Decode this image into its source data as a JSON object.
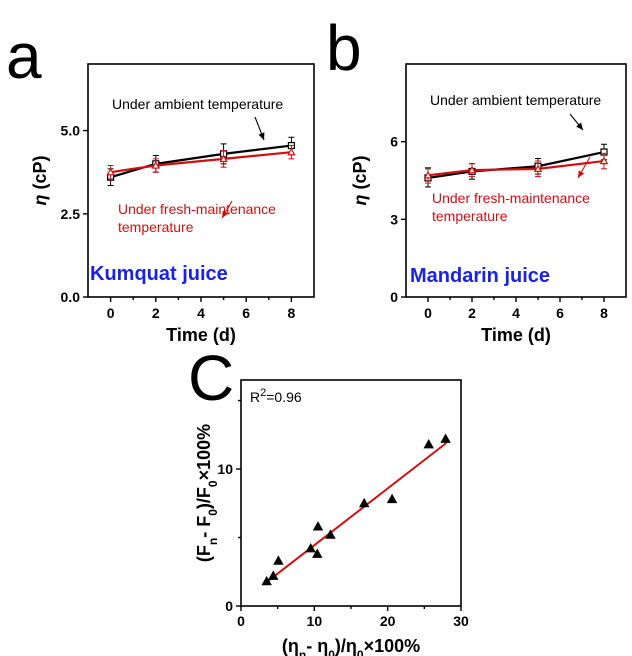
{
  "colors": {
    "ambient": "#000000",
    "fresh": "#d01010",
    "juice_label": "#1a22e6",
    "fit": "#d01010"
  },
  "chart_data": [
    {
      "panel": "a",
      "type": "line",
      "xlabel": "Time (d)",
      "ylabel_symbol": "η",
      "ylabel_unit": "(cP)",
      "xlim": [
        -1,
        9
      ],
      "ylim": [
        0,
        7
      ],
      "xticks": [
        0,
        2,
        4,
        6,
        8
      ],
      "yticks": [
        {
          "v": 0,
          "label": "0.0"
        },
        {
          "v": 2.5,
          "label": "2.5"
        },
        {
          "v": 5,
          "label": "5.0"
        }
      ],
      "juice_label": "Kumquat juice",
      "annotations": {
        "ambient": "Under ambient temperature",
        "fresh_line1": "Under fresh-maintenance",
        "fresh_line2": "temperature"
      },
      "series": [
        {
          "name": "Under ambient temperature",
          "marker": "square",
          "x": [
            0,
            2,
            5,
            8
          ],
          "y": [
            3.6,
            4.0,
            4.3,
            4.55
          ],
          "err": [
            0.25,
            0.25,
            0.3,
            0.25
          ]
        },
        {
          "name": "Under fresh-maintenance temperature",
          "marker": "triangle",
          "x": [
            0,
            2,
            5,
            8
          ],
          "y": [
            3.75,
            3.95,
            4.15,
            4.35
          ],
          "err": [
            0.2,
            0.2,
            0.25,
            0.2
          ]
        }
      ]
    },
    {
      "panel": "b",
      "type": "line",
      "xlabel": "Time (d)",
      "ylabel_symbol": "η",
      "ylabel_unit": "(cP)",
      "xlim": [
        -1,
        9
      ],
      "ylim": [
        0,
        9
      ],
      "xticks": [
        0,
        2,
        4,
        6,
        8
      ],
      "yticks": [
        {
          "v": 0,
          "label": "0"
        },
        {
          "v": 3,
          "label": "3"
        },
        {
          "v": 6,
          "label": "6"
        }
      ],
      "juice_label": "Mandarin juice",
      "annotations": {
        "ambient": "Under ambient temperature",
        "fresh_line1": "Under fresh-maintenance",
        "fresh_line2": "temperature"
      },
      "series": [
        {
          "name": "Under ambient temperature",
          "marker": "square",
          "x": [
            0,
            2,
            5,
            8
          ],
          "y": [
            4.6,
            4.85,
            5.05,
            5.6
          ],
          "err": [
            0.35,
            0.3,
            0.3,
            0.3
          ]
        },
        {
          "name": "Under fresh-maintenance temperature",
          "marker": "triangle",
          "x": [
            0,
            2,
            5,
            8
          ],
          "y": [
            4.7,
            4.9,
            4.95,
            5.25
          ],
          "err": [
            0.3,
            0.25,
            0.3,
            0.3
          ]
        }
      ]
    },
    {
      "panel": "c",
      "type": "scatter",
      "xlabel_main": "(η",
      "xlabel_sub1": "n",
      "xlabel_mid": "- η",
      "xlabel_sub2": "0",
      "xlabel_mid2": ")/η",
      "xlabel_sub3": "0",
      "xlabel_end": "×100%",
      "ylabel_main": "(F",
      "ylabel_sub1": "n",
      "ylabel_mid": "- F",
      "ylabel_sub2": "0",
      "ylabel_mid2": ")/F",
      "ylabel_sub3": "0",
      "ylabel_end": "×100%",
      "r2_base": "R",
      "r2_sup": "2",
      "r2_value": "=0.96",
      "xlim": [
        0,
        30
      ],
      "ylim": [
        0,
        16.5
      ],
      "xticks": [
        0,
        10,
        20,
        30
      ],
      "yticks": [
        0,
        10
      ],
      "points": [
        {
          "x": 3.5,
          "y": 1.8
        },
        {
          "x": 4.4,
          "y": 2.2
        },
        {
          "x": 5.1,
          "y": 3.3
        },
        {
          "x": 9.5,
          "y": 4.2
        },
        {
          "x": 10.4,
          "y": 3.8
        },
        {
          "x": 10.5,
          "y": 5.8
        },
        {
          "x": 12.2,
          "y": 5.2
        },
        {
          "x": 16.8,
          "y": 7.5
        },
        {
          "x": 20.6,
          "y": 7.8
        },
        {
          "x": 25.6,
          "y": 11.8
        },
        {
          "x": 27.9,
          "y": 12.2
        }
      ],
      "fit": {
        "x0": 3.4,
        "y0": 1.7,
        "x1": 28,
        "y1": 11.9
      }
    }
  ]
}
